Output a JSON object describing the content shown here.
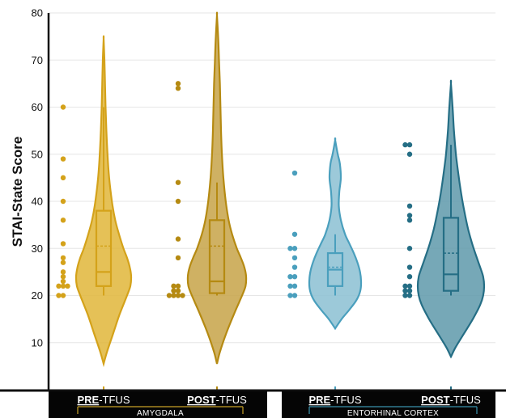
{
  "chart_data": {
    "type": "violin",
    "ylabel": "STAI-State Score",
    "ylim": [
      0,
      80
    ],
    "yticks": [
      10,
      20,
      30,
      40,
      50,
      60,
      70,
      80
    ],
    "grid": true,
    "groups": [
      {
        "region": "AMYGDALA",
        "region_color": "#c9a227",
        "violins": [
          {
            "label_bold": "PRE",
            "label_rest": "-TFUS",
            "color": "#e0b63a",
            "stroke": "#d4a21a",
            "kde": {
              "y": [
                5.5,
                8,
                12,
                16,
                20,
                22,
                24,
                26,
                28,
                30,
                33,
                36,
                40,
                45,
                50,
                55,
                60,
                65,
                70,
                74.5
              ],
              "w": [
                0,
                0.12,
                0.35,
                0.58,
                0.85,
                0.97,
                1.0,
                0.95,
                0.85,
                0.72,
                0.56,
                0.42,
                0.3,
                0.2,
                0.14,
                0.1,
                0.07,
                0.05,
                0.03,
                0
              ]
            },
            "box": {
              "q1": 22,
              "median": 25,
              "q3": 38,
              "whisker_low": 20,
              "whisker_high": 60,
              "mean": 30.5
            },
            "points": [
              60,
              49,
              45,
              40,
              36,
              31,
              28,
              27,
              25,
              24,
              23,
              22,
              22,
              22,
              20,
              20
            ]
          },
          {
            "label_bold": "POST",
            "label_rest": "-TFUS",
            "color": "#c7a348",
            "stroke": "#b58a12",
            "kde": {
              "y": [
                5.5,
                8,
                12,
                16,
                20,
                22,
                24,
                26,
                28,
                30,
                33,
                36,
                40,
                45,
                50,
                55,
                60,
                65,
                70,
                75,
                79.5
              ],
              "w": [
                0,
                0.1,
                0.32,
                0.58,
                0.86,
                0.98,
                1.0,
                0.94,
                0.82,
                0.68,
                0.52,
                0.4,
                0.3,
                0.22,
                0.17,
                0.14,
                0.12,
                0.1,
                0.07,
                0.04,
                0
              ]
            },
            "box": {
              "q1": 20.5,
              "median": 23,
              "q3": 36,
              "whisker_low": 20,
              "whisker_high": 44,
              "mean": 30.5
            },
            "points": [
              65,
              64,
              44,
              40,
              32,
              28,
              22,
              22,
              21,
              21,
              20,
              20,
              20,
              20
            ]
          }
        ]
      },
      {
        "region": "ENTORHINAL CORTEX",
        "region_color": "#3a92ad",
        "violins": [
          {
            "label_bold": "PRE",
            "label_rest": "-TFUS",
            "color": "#8bbfd2",
            "stroke": "#4a9fbd",
            "kde": {
              "y": [
                13,
                15,
                17,
                19,
                21,
                23,
                25,
                27,
                29,
                31,
                33,
                36,
                39,
                42,
                45,
                48,
                50,
                53
              ],
              "w": [
                0,
                0.25,
                0.55,
                0.82,
                0.97,
                1.0,
                0.96,
                0.86,
                0.72,
                0.55,
                0.38,
                0.22,
                0.14,
                0.16,
                0.22,
                0.18,
                0.1,
                0
              ]
            },
            "box": {
              "q1": 22,
              "median": 25.5,
              "q3": 29,
              "whisker_low": 20,
              "whisker_high": 33,
              "mean": 26
            },
            "points": [
              46,
              33,
              30,
              30,
              28,
              26,
              24,
              24,
              22,
              22,
              20,
              20
            ]
          },
          {
            "label_bold": "POST",
            "label_rest": "-TFUS",
            "color": "#5e99aa",
            "stroke": "#256e85",
            "kde": {
              "y": [
                7,
                9,
                12,
                15,
                18,
                20,
                22,
                24,
                26,
                28,
                31,
                34,
                38,
                42,
                46,
                50,
                55,
                60,
                65
              ],
              "w": [
                0,
                0.14,
                0.4,
                0.66,
                0.88,
                0.97,
                1.0,
                0.97,
                0.88,
                0.78,
                0.64,
                0.52,
                0.4,
                0.3,
                0.22,
                0.15,
                0.09,
                0.05,
                0
              ]
            },
            "box": {
              "q1": 21,
              "median": 24.5,
              "q3": 36.5,
              "whisker_low": 20,
              "whisker_high": 52,
              "mean": 29
            },
            "points": [
              52,
              52,
              50,
              39,
              37,
              36,
              30,
              26,
              24,
              22,
              22,
              21,
              21,
              20,
              20
            ]
          }
        ]
      }
    ]
  }
}
